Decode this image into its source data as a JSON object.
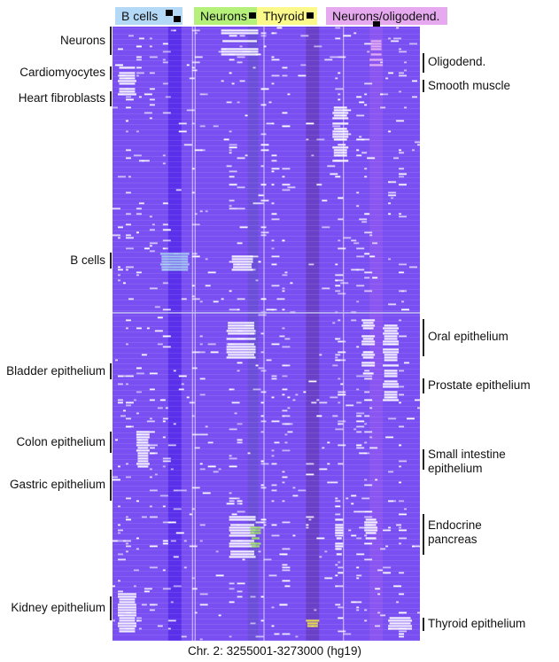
{
  "header_groups": [
    {
      "label": "B cells",
      "color": "#b3d9f7"
    },
    {
      "label": "Neurons",
      "color": "#b5f07a"
    },
    {
      "label": "Thyroid",
      "color": "#fbf98a"
    },
    {
      "label": "Neurons/oligodend.",
      "color": "#e6a9f0"
    }
  ],
  "left_labels": [
    "Neurons",
    "Cardiomyocytes",
    "Heart fibroblasts",
    "B cells",
    "Bladder epithelium",
    "Colon epithelium",
    "Gastric epithelium",
    "Kidney epithelium"
  ],
  "right_labels": [
    "Oligodend.",
    "Smooth muscle",
    "Oral epithelium",
    "Prostate epithelium",
    "Small intestine epithelium",
    "Endocrine pancreas",
    "Thyroid epithelium"
  ],
  "caption": "Chr. 2: 3255001-3273000 (hg19)",
  "chart_data": {
    "type": "heatmap",
    "xlabel": "Chr. 2: 3255001-3273000 (hg19)",
    "n_cols": 116,
    "n_rows": 231,
    "colors": {
      "methylated": "#7a4ff2",
      "unmethylated": "#ffffff",
      "bcell": "#a9d2f2",
      "neuron": "#9fe06a",
      "thyroid": "#f2e84a",
      "oligo": "#e9b4f2"
    },
    "column_bands": [
      {
        "cols": [
          21,
          25
        ],
        "color": "#5b30ea"
      },
      {
        "cols": [
          51,
          54
        ],
        "color": "#6c4fd8"
      },
      {
        "cols": [
          73,
          77
        ],
        "color": "#6a40c8"
      },
      {
        "cols": [
          97,
          101
        ],
        "color": "#8a55f0"
      }
    ],
    "unmethylated_blocks": [
      {
        "group": "Neurons",
        "cols": [
          41,
          54
        ],
        "rows": [
          0,
          10
        ],
        "color": "unmethylated"
      },
      {
        "group": "Oligodend.",
        "cols": [
          97,
          101
        ],
        "rows": [
          5,
          15
        ],
        "color": "oligo"
      },
      {
        "group": "Cardiomyocytes",
        "cols": [
          2,
          8
        ],
        "rows": [
          15,
          25
        ],
        "color": "unmethylated"
      },
      {
        "group": "Smooth muscle",
        "cols": [
          83,
          88
        ],
        "rows": [
          30,
          50
        ],
        "color": "unmethylated"
      },
      {
        "group": "B cells",
        "cols": [
          18,
          28
        ],
        "rows": [
          85,
          91
        ],
        "color": "bcell"
      },
      {
        "group": "B cells",
        "cols": [
          45,
          52
        ],
        "rows": [
          85,
          91
        ],
        "color": "unmethylated"
      },
      {
        "group": "Oral epithelium",
        "cols": [
          43,
          53
        ],
        "rows": [
          110,
          124
        ],
        "color": "unmethylated"
      },
      {
        "group": "Oral epithelium",
        "cols": [
          94,
          98
        ],
        "rows": [
          110,
          130
        ],
        "color": "unmethylated"
      },
      {
        "group": "Prostate epithelium",
        "cols": [
          102,
          107
        ],
        "rows": [
          112,
          140
        ],
        "color": "unmethylated"
      },
      {
        "group": "Colon epithelium",
        "cols": [
          9,
          13
        ],
        "rows": [
          152,
          165
        ],
        "color": "unmethylated"
      },
      {
        "group": "Endocrine pancreas",
        "cols": [
          44,
          53
        ],
        "rows": [
          183,
          199
        ],
        "color": "unmethylated"
      },
      {
        "group": "Endocrine pancreas",
        "cols": [
          52,
          55
        ],
        "rows": [
          186,
          195
        ],
        "color": "neuron"
      },
      {
        "group": "Endocrine pancreas",
        "cols": [
          84,
          86
        ],
        "rows": [
          185,
          198
        ],
        "color": "unmethylated"
      },
      {
        "group": "Endocrine pancreas",
        "cols": [
          95,
          99
        ],
        "rows": [
          185,
          195
        ],
        "color": "unmethylated"
      },
      {
        "group": "Kidney epithelium",
        "cols": [
          2,
          8
        ],
        "rows": [
          213,
          227
        ],
        "color": "unmethylated"
      },
      {
        "group": "Thyroid epithelium",
        "cols": [
          73,
          77
        ],
        "rows": [
          222,
          225
        ],
        "color": "thyroid"
      },
      {
        "group": "Thyroid epithelium",
        "cols": [
          104,
          112
        ],
        "rows": [
          222,
          226
        ],
        "color": "unmethylated"
      }
    ]
  }
}
